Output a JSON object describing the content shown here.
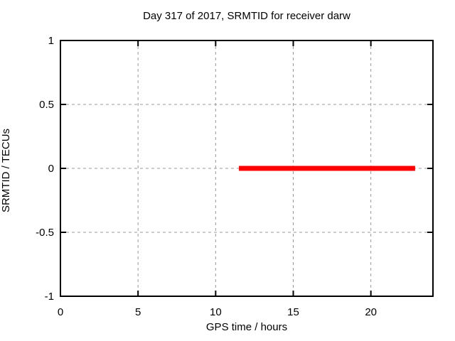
{
  "page": {
    "background": "#ffffff"
  },
  "chart_data": {
    "type": "line",
    "title": "Day 317 of 2017, SRMTID for receiver darw",
    "xlabel": "GPS time / hours",
    "ylabel": "SRMTID / TECUs",
    "xlim": [
      0,
      24
    ],
    "ylim": [
      -1,
      1
    ],
    "xticks": {
      "values": [
        0,
        5,
        10,
        15,
        20
      ],
      "labels": [
        "0",
        "5",
        "10",
        "15",
        "20"
      ]
    },
    "yticks": {
      "values": [
        -1,
        -0.5,
        0,
        0.5,
        1
      ],
      "labels": [
        "-1",
        "-0.5",
        "0",
        "0.5",
        "1"
      ]
    },
    "grid": true,
    "grid_style": "dashed",
    "legend": "none",
    "series": [
      {
        "name": "SRMTID",
        "color": "#ff0000",
        "linewidth": 7,
        "x": [
          11.5,
          22.85
        ],
        "y": [
          0,
          0
        ]
      }
    ],
    "colors": {
      "grid": "#999999",
      "axis": "#000000",
      "text": "#000000",
      "background": "#ffffff"
    }
  }
}
